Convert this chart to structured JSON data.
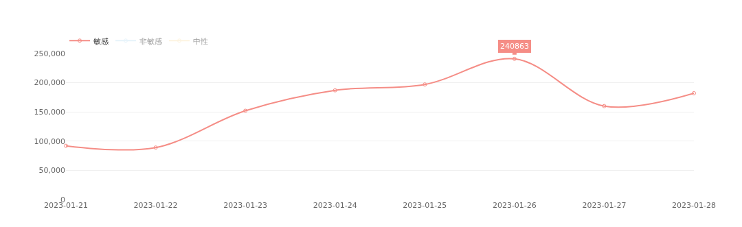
{
  "chart_data": {
    "type": "line",
    "categories": [
      "2023-01-21",
      "2023-01-22",
      "2023-01-23",
      "2023-01-24",
      "2023-01-25",
      "2023-01-26",
      "2023-01-27",
      "2023-01-28"
    ],
    "series": [
      {
        "name": "敏感",
        "color": "#f58d86",
        "values": [
          92000,
          89000,
          152000,
          187000,
          197000,
          240863,
          160000,
          182000
        ]
      },
      {
        "name": "非敏感",
        "color": "#cfe8f7",
        "values": [
          null,
          null,
          null,
          null,
          null,
          null,
          null,
          null
        ]
      },
      {
        "name": "中性",
        "color": "#fbe9c2",
        "values": [
          null,
          null,
          null,
          null,
          null,
          null,
          null,
          null
        ]
      }
    ],
    "ylim": [
      0,
      250000
    ],
    "yticks": [
      {
        "value": 0,
        "label": "0"
      },
      {
        "value": 50000,
        "label": "50,000"
      },
      {
        "value": 100000,
        "label": "100,000"
      },
      {
        "value": 150000,
        "label": "150,000"
      },
      {
        "value": 200000,
        "label": "200,000"
      },
      {
        "value": 250000,
        "label": "250,000"
      }
    ],
    "annotations": [
      {
        "text": "240863",
        "x": "2023-01-26",
        "y": 240863
      }
    ],
    "grid": "y",
    "legend": "top left",
    "marker": "circle",
    "line_style": "solid"
  }
}
